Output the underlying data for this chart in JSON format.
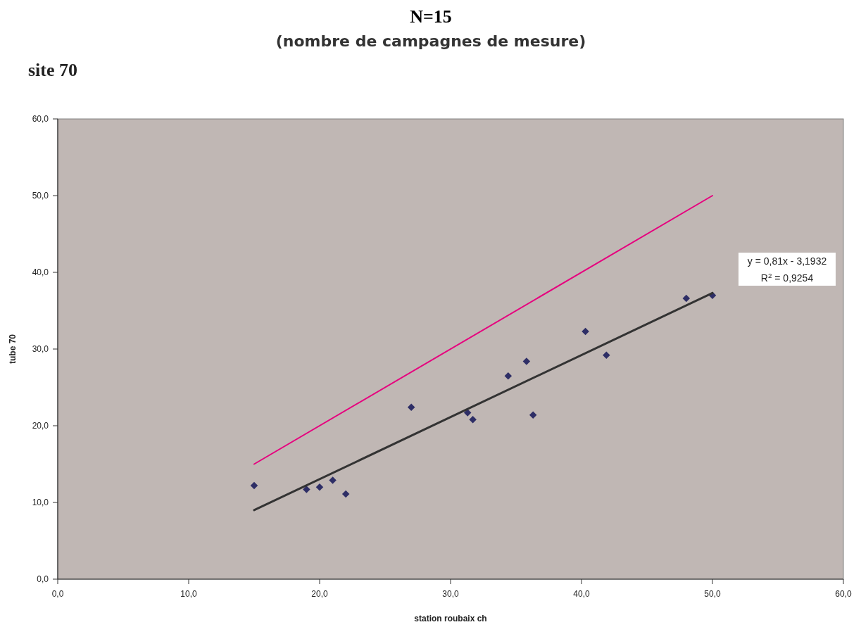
{
  "chart_data": {
    "type": "scatter",
    "title": "N=15",
    "subtitle": "(nombre de campagnes de mesure)",
    "xlabel": "station roubaix ch",
    "ylabel": "tube 70",
    "annotations": [
      "site 70",
      "y = 0,81x - 3,1932",
      "R$^{2}$ = 0,9254"
    ],
    "xlim": [
      0,
      60
    ],
    "ylim": [
      0,
      60
    ],
    "xticks": [
      {
        "value": 0,
        "label": "0,0"
      },
      {
        "value": 10,
        "label": "10,0"
      },
      {
        "value": 20,
        "label": "20,0"
      },
      {
        "value": 30,
        "label": "30,0"
      },
      {
        "value": 40,
        "label": "40,0"
      },
      {
        "value": 50,
        "label": "50,0"
      },
      {
        "value": 60,
        "label": "60,0"
      }
    ],
    "yticks": [
      {
        "value": 0,
        "label": "0,0"
      },
      {
        "value": 10,
        "label": "10,0"
      },
      {
        "value": 20,
        "label": "20,0"
      },
      {
        "value": 30,
        "label": "30,0"
      },
      {
        "value": 40,
        "label": "40,0"
      },
      {
        "value": 50,
        "label": "50,0"
      },
      {
        "value": 60,
        "label": "60,0"
      }
    ],
    "grid": false,
    "series": [
      {
        "color": "#2e2e66",
        "marker": "diamond",
        "x": [
          15.0,
          19.0,
          20.0,
          21.0,
          22.0,
          27.0,
          31.3,
          31.7,
          34.4,
          35.8,
          36.3,
          40.3,
          41.9,
          48.0,
          50.0
        ],
        "values": [
          12.2,
          11.7,
          12.0,
          12.9,
          11.1,
          22.4,
          21.7,
          20.8,
          26.5,
          28.4,
          21.4,
          32.3,
          29.2,
          36.6,
          37.0
        ]
      },
      {
        "type": "line",
        "color": "#e6007e",
        "marker": "none",
        "line_style": "solid",
        "x": [
          15,
          50
        ],
        "values": [
          15,
          50
        ]
      },
      {
        "type": "line",
        "color": "#333333",
        "marker": "none",
        "line_style": "solid",
        "x": [
          15,
          50
        ],
        "values": [
          9.0,
          37.3
        ]
      }
    ]
  }
}
